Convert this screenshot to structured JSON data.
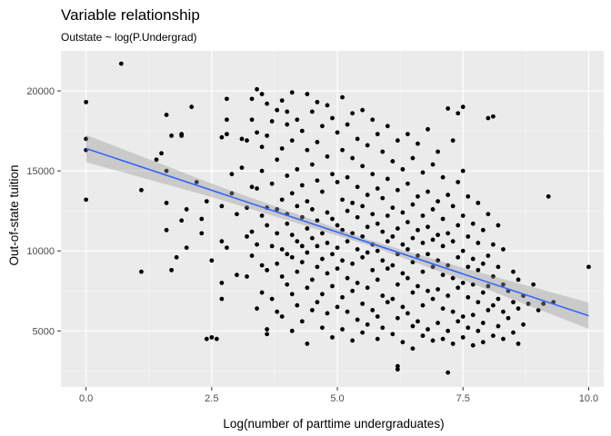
{
  "chart_data": {
    "type": "scatter",
    "title": "Variable relationship",
    "subtitle": "Outstate ~ log(P.Undergrad)",
    "xlabel": "Log(number of parttime undergraduates)",
    "ylabel": "Out-of-state tuition",
    "xlim": [
      -0.5,
      10.3
    ],
    "ylim": [
      1500,
      22500
    ],
    "x_ticks": [
      0.0,
      2.5,
      5.0,
      7.5,
      10.0
    ],
    "x_tick_labels": [
      "0.0",
      "2.5",
      "5.0",
      "7.5",
      "10.0"
    ],
    "y_ticks": [
      5000,
      10000,
      15000,
      20000
    ],
    "y_tick_labels": [
      "5000",
      "10000",
      "15000",
      "20000"
    ],
    "grid": true,
    "point_color": "#000000",
    "panel_color": "#ebebeb",
    "fit": {
      "method": "lm",
      "color": "#3366ff",
      "ribbon_color": "#999999",
      "x": [
        0.0,
        10.0
      ],
      "y": [
        16400,
        5950
      ],
      "ci_halfwidth_at_x": [
        [
          0.0,
          850
        ],
        [
          2.5,
          420
        ],
        [
          5.6,
          170
        ],
        [
          7.5,
          380
        ],
        [
          10.0,
          820
        ]
      ]
    },
    "points": [
      [
        0.0,
        19300
      ],
      [
        0.0,
        17000
      ],
      [
        0.0,
        16300
      ],
      [
        0.0,
        13200
      ],
      [
        0.7,
        21700
      ],
      [
        1.1,
        13800
      ],
      [
        1.1,
        8700
      ],
      [
        1.4,
        15700
      ],
      [
        1.5,
        16100
      ],
      [
        1.6,
        18500
      ],
      [
        1.6,
        15000
      ],
      [
        1.6,
        13000
      ],
      [
        1.6,
        11300
      ],
      [
        1.7,
        17200
      ],
      [
        1.7,
        8800
      ],
      [
        1.8,
        9600
      ],
      [
        1.9,
        17300
      ],
      [
        1.9,
        17200
      ],
      [
        1.9,
        11900
      ],
      [
        2.0,
        10200
      ],
      [
        2.0,
        12600
      ],
      [
        2.1,
        19000
      ],
      [
        2.2,
        14300
      ],
      [
        2.3,
        12000
      ],
      [
        2.3,
        11100
      ],
      [
        2.4,
        4500
      ],
      [
        2.4,
        13100
      ],
      [
        2.5,
        9400
      ],
      [
        2.5,
        4600
      ],
      [
        2.6,
        4500
      ],
      [
        2.7,
        17100
      ],
      [
        2.7,
        12800
      ],
      [
        2.7,
        10600
      ],
      [
        2.7,
        8000
      ],
      [
        2.7,
        7000
      ],
      [
        2.8,
        19500
      ],
      [
        2.8,
        17300
      ],
      [
        2.8,
        18200
      ],
      [
        2.8,
        10200
      ],
      [
        2.9,
        14800
      ],
      [
        2.9,
        13600
      ],
      [
        3.0,
        8500
      ],
      [
        3.0,
        12300
      ],
      [
        3.1,
        17000
      ],
      [
        3.1,
        15200
      ],
      [
        3.2,
        16900
      ],
      [
        3.2,
        12700
      ],
      [
        3.2,
        8400
      ],
      [
        3.2,
        10900
      ],
      [
        3.3,
        19500
      ],
      [
        3.3,
        18200
      ],
      [
        3.3,
        14000
      ],
      [
        3.3,
        11200
      ],
      [
        3.3,
        9700
      ],
      [
        3.4,
        20100
      ],
      [
        3.4,
        17400
      ],
      [
        3.4,
        13900
      ],
      [
        3.4,
        10400
      ],
      [
        3.4,
        6400
      ],
      [
        3.5,
        19800
      ],
      [
        3.5,
        16500
      ],
      [
        3.5,
        15000
      ],
      [
        3.5,
        12200
      ],
      [
        3.5,
        9100
      ],
      [
        3.5,
        7400
      ],
      [
        3.6,
        19200
      ],
      [
        3.6,
        17200
      ],
      [
        3.6,
        12700
      ],
      [
        3.6,
        11600
      ],
      [
        3.6,
        8800
      ],
      [
        3.6,
        5100
      ],
      [
        3.6,
        4800
      ],
      [
        3.7,
        18100
      ],
      [
        3.7,
        14200
      ],
      [
        3.7,
        10300
      ],
      [
        3.7,
        7000
      ],
      [
        3.8,
        18800
      ],
      [
        3.8,
        15700
      ],
      [
        3.8,
        12600
      ],
      [
        3.8,
        11100
      ],
      [
        3.8,
        9200
      ],
      [
        3.8,
        6200
      ],
      [
        3.9,
        19400
      ],
      [
        3.9,
        16400
      ],
      [
        3.9,
        13200
      ],
      [
        3.9,
        10100
      ],
      [
        3.9,
        8400
      ],
      [
        3.9,
        5900
      ],
      [
        4.0,
        18700
      ],
      [
        4.0,
        17900
      ],
      [
        4.0,
        14700
      ],
      [
        4.0,
        12300
      ],
      [
        4.0,
        11700
      ],
      [
        4.0,
        9800
      ],
      [
        4.0,
        7900
      ],
      [
        4.1,
        19900
      ],
      [
        4.1,
        16900
      ],
      [
        4.1,
        13600
      ],
      [
        4.1,
        11000
      ],
      [
        4.1,
        9600
      ],
      [
        4.1,
        7300
      ],
      [
        4.1,
        5000
      ],
      [
        4.2,
        18200
      ],
      [
        4.2,
        15100
      ],
      [
        4.2,
        12800
      ],
      [
        4.2,
        10600
      ],
      [
        4.2,
        8700
      ],
      [
        4.2,
        6600
      ],
      [
        4.3,
        17500
      ],
      [
        4.3,
        14100
      ],
      [
        4.3,
        12100
      ],
      [
        4.3,
        10300
      ],
      [
        4.3,
        9300
      ],
      [
        4.3,
        5600
      ],
      [
        4.4,
        19800
      ],
      [
        4.4,
        16300
      ],
      [
        4.4,
        13100
      ],
      [
        4.4,
        11400
      ],
      [
        4.4,
        9900
      ],
      [
        4.4,
        7700
      ],
      [
        4.4,
        4200
      ],
      [
        4.5,
        18700
      ],
      [
        4.5,
        15400
      ],
      [
        4.5,
        12600
      ],
      [
        4.5,
        10800
      ],
      [
        4.5,
        8200
      ],
      [
        4.5,
        6300
      ],
      [
        4.6,
        19300
      ],
      [
        4.6,
        16800
      ],
      [
        4.6,
        14400
      ],
      [
        4.6,
        11900
      ],
      [
        4.6,
        10300
      ],
      [
        4.6,
        9000
      ],
      [
        4.6,
        6800
      ],
      [
        4.7,
        17800
      ],
      [
        4.7,
        13700
      ],
      [
        4.7,
        11100
      ],
      [
        4.7,
        9500
      ],
      [
        4.7,
        7300
      ],
      [
        4.7,
        5200
      ],
      [
        4.8,
        19100
      ],
      [
        4.8,
        15900
      ],
      [
        4.8,
        12400
      ],
      [
        4.8,
        10500
      ],
      [
        4.8,
        8600
      ],
      [
        4.8,
        6100
      ],
      [
        4.9,
        18300
      ],
      [
        4.9,
        14800
      ],
      [
        4.9,
        12000
      ],
      [
        4.9,
        9800
      ],
      [
        4.9,
        7800
      ],
      [
        4.9,
        4600
      ],
      [
        5.0,
        17400
      ],
      [
        5.0,
        14300
      ],
      [
        5.0,
        11600
      ],
      [
        5.0,
        10200
      ],
      [
        5.0,
        8900
      ],
      [
        5.0,
        6500
      ],
      [
        5.1,
        19600
      ],
      [
        5.1,
        16300
      ],
      [
        5.1,
        13200
      ],
      [
        5.1,
        11300
      ],
      [
        5.1,
        9400
      ],
      [
        5.1,
        7100
      ],
      [
        5.1,
        5100
      ],
      [
        5.2,
        17900
      ],
      [
        5.2,
        14600
      ],
      [
        5.2,
        12500
      ],
      [
        5.2,
        10600
      ],
      [
        5.2,
        8300
      ],
      [
        5.2,
        6200
      ],
      [
        5.3,
        18600
      ],
      [
        5.3,
        15800
      ],
      [
        5.3,
        13000
      ],
      [
        5.3,
        11100
      ],
      [
        5.3,
        9200
      ],
      [
        5.3,
        7500
      ],
      [
        5.3,
        4400
      ],
      [
        5.4,
        17000
      ],
      [
        5.4,
        14000
      ],
      [
        5.4,
        12100
      ],
      [
        5.4,
        10100
      ],
      [
        5.4,
        8000
      ],
      [
        5.4,
        5700
      ],
      [
        5.5,
        18800
      ],
      [
        5.5,
        15300
      ],
      [
        5.5,
        12800
      ],
      [
        5.5,
        10900
      ],
      [
        5.5,
        9600
      ],
      [
        5.5,
        6700
      ],
      [
        5.5,
        4900
      ],
      [
        5.6,
        16600
      ],
      [
        5.6,
        13500
      ],
      [
        5.6,
        11500
      ],
      [
        5.6,
        9900
      ],
      [
        5.6,
        7700
      ],
      [
        5.6,
        5400
      ],
      [
        5.7,
        18200
      ],
      [
        5.7,
        14800
      ],
      [
        5.7,
        12300
      ],
      [
        5.7,
        10400
      ],
      [
        5.7,
        8800
      ],
      [
        5.7,
        6300
      ],
      [
        5.8,
        17300
      ],
      [
        5.8,
        13900
      ],
      [
        5.8,
        11700
      ],
      [
        5.8,
        10000
      ],
      [
        5.8,
        8200
      ],
      [
        5.8,
        5900
      ],
      [
        5.8,
        4500
      ],
      [
        5.9,
        16200
      ],
      [
        5.9,
        13300
      ],
      [
        5.9,
        11200
      ],
      [
        5.9,
        9400
      ],
      [
        5.9,
        7200
      ],
      [
        5.9,
        5200
      ],
      [
        6.0,
        17800
      ],
      [
        6.0,
        14500
      ],
      [
        6.0,
        12200
      ],
      [
        6.0,
        10600
      ],
      [
        6.0,
        8900
      ],
      [
        6.0,
        6800
      ],
      [
        6.1,
        15600
      ],
      [
        6.1,
        12700
      ],
      [
        6.1,
        10900
      ],
      [
        6.1,
        9100
      ],
      [
        6.1,
        7000
      ],
      [
        6.1,
        4800
      ],
      [
        6.2,
        2800
      ],
      [
        6.2,
        2600
      ],
      [
        6.2,
        16900
      ],
      [
        6.2,
        13800
      ],
      [
        6.2,
        11400
      ],
      [
        6.2,
        9800
      ],
      [
        6.2,
        7900
      ],
      [
        6.2,
        5800
      ],
      [
        6.3,
        15100
      ],
      [
        6.3,
        12400
      ],
      [
        6.3,
        10400
      ],
      [
        6.3,
        8600
      ],
      [
        6.3,
        6500
      ],
      [
        6.3,
        4300
      ],
      [
        6.4,
        17300
      ],
      [
        6.4,
        14200
      ],
      [
        6.4,
        11800
      ],
      [
        6.4,
        10100
      ],
      [
        6.4,
        8300
      ],
      [
        6.4,
        6100
      ],
      [
        6.5,
        15800
      ],
      [
        6.5,
        12900
      ],
      [
        6.5,
        10800
      ],
      [
        6.5,
        9300
      ],
      [
        6.5,
        7400
      ],
      [
        6.5,
        5300
      ],
      [
        6.5,
        3900
      ],
      [
        6.6,
        16700
      ],
      [
        6.6,
        13400
      ],
      [
        6.6,
        11300
      ],
      [
        6.6,
        9700
      ],
      [
        6.6,
        7800
      ],
      [
        6.6,
        5600
      ],
      [
        6.7,
        14900
      ],
      [
        6.7,
        12200
      ],
      [
        6.7,
        10500
      ],
      [
        6.7,
        8700
      ],
      [
        6.7,
        6600
      ],
      [
        6.7,
        4700
      ],
      [
        6.8,
        17600
      ],
      [
        6.8,
        13700
      ],
      [
        6.8,
        11500
      ],
      [
        6.8,
        9800
      ],
      [
        6.8,
        7500
      ],
      [
        6.8,
        5100
      ],
      [
        6.9,
        15400
      ],
      [
        6.9,
        12600
      ],
      [
        6.9,
        10700
      ],
      [
        6.9,
        9000
      ],
      [
        6.9,
        7000
      ],
      [
        6.9,
        4400
      ],
      [
        7.0,
        16200
      ],
      [
        7.0,
        13100
      ],
      [
        7.0,
        11000
      ],
      [
        7.0,
        9400
      ],
      [
        7.0,
        7600
      ],
      [
        7.0,
        5500
      ],
      [
        7.1,
        14600
      ],
      [
        7.1,
        12000
      ],
      [
        7.1,
        10300
      ],
      [
        7.1,
        8500
      ],
      [
        7.1,
        6400
      ],
      [
        7.1,
        4500
      ],
      [
        7.2,
        2400
      ],
      [
        7.2,
        18900
      ],
      [
        7.2,
        13500
      ],
      [
        7.2,
        11100
      ],
      [
        7.2,
        9100
      ],
      [
        7.2,
        7200
      ],
      [
        7.2,
        5000
      ],
      [
        7.3,
        16900
      ],
      [
        7.3,
        12800
      ],
      [
        7.3,
        10600
      ],
      [
        7.3,
        8300
      ],
      [
        7.3,
        6200
      ],
      [
        7.3,
        4200
      ],
      [
        7.4,
        18600
      ],
      [
        7.4,
        14300
      ],
      [
        7.4,
        11600
      ],
      [
        7.4,
        9600
      ],
      [
        7.4,
        7700
      ],
      [
        7.4,
        5600
      ],
      [
        7.5,
        19000
      ],
      [
        7.5,
        15000
      ],
      [
        7.5,
        12200
      ],
      [
        7.5,
        10000
      ],
      [
        7.5,
        8000
      ],
      [
        7.5,
        5900
      ],
      [
        7.5,
        4600
      ],
      [
        7.6,
        13400
      ],
      [
        7.6,
        10900
      ],
      [
        7.6,
        9000
      ],
      [
        7.6,
        7100
      ],
      [
        7.6,
        5200
      ],
      [
        7.7,
        11700
      ],
      [
        7.7,
        9500
      ],
      [
        7.7,
        7900
      ],
      [
        7.7,
        6000
      ],
      [
        7.7,
        4100
      ],
      [
        7.8,
        13000
      ],
      [
        7.8,
        10500
      ],
      [
        7.8,
        8800
      ],
      [
        7.8,
        6800
      ],
      [
        7.8,
        5000
      ],
      [
        7.9,
        11300
      ],
      [
        7.9,
        9200
      ],
      [
        7.9,
        7400
      ],
      [
        7.9,
        5500
      ],
      [
        7.9,
        4300
      ],
      [
        8.0,
        18300
      ],
      [
        8.0,
        12300
      ],
      [
        8.0,
        9700
      ],
      [
        8.0,
        7800
      ],
      [
        8.0,
        6300
      ],
      [
        8.1,
        18400
      ],
      [
        8.1,
        10400
      ],
      [
        8.1,
        8400
      ],
      [
        8.1,
        6600
      ],
      [
        8.1,
        4700
      ],
      [
        8.2,
        11600
      ],
      [
        8.2,
        9000
      ],
      [
        8.2,
        7000
      ],
      [
        8.2,
        5300
      ],
      [
        8.3,
        10100
      ],
      [
        8.3,
        7900
      ],
      [
        8.3,
        6200
      ],
      [
        8.3,
        4500
      ],
      [
        8.4,
        7500
      ],
      [
        8.4,
        5800
      ],
      [
        8.5,
        8700
      ],
      [
        8.5,
        6800
      ],
      [
        8.5,
        4900
      ],
      [
        8.6,
        8200
      ],
      [
        8.6,
        6400
      ],
      [
        8.6,
        4200
      ],
      [
        8.7,
        7200
      ],
      [
        8.7,
        5400
      ],
      [
        8.8,
        6700
      ],
      [
        8.9,
        7900
      ],
      [
        9.0,
        6300
      ],
      [
        9.1,
        6700
      ],
      [
        9.2,
        13400
      ],
      [
        9.3,
        6800
      ],
      [
        10.0,
        9000
      ]
    ]
  }
}
